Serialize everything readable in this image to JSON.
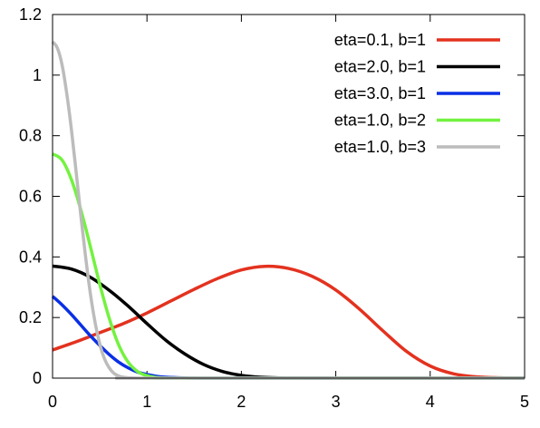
{
  "chart_data": {
    "type": "line",
    "title": "",
    "xlabel": "",
    "ylabel": "",
    "xlim": [
      0,
      5
    ],
    "ylim": [
      0,
      1.2
    ],
    "x_ticks": [
      0,
      1,
      2,
      3,
      4,
      5
    ],
    "x_tick_labels": [
      "0",
      "1",
      "2",
      "3",
      "4",
      "5"
    ],
    "y_ticks": [
      0,
      0.2,
      0.4,
      0.6,
      0.8,
      1.0,
      1.2
    ],
    "y_tick_labels": [
      "0",
      "0.2",
      "0.4",
      "0.6",
      "0.8",
      "1",
      "1.2"
    ],
    "grid": false,
    "legend_position": "top-right",
    "series": [
      {
        "name": "eta=0.1, b=1",
        "color": "#e3321f",
        "x": [
          0,
          0.25,
          0.5,
          0.75,
          1.0,
          1.25,
          1.5,
          1.75,
          2.0,
          2.25,
          2.5,
          2.75,
          3.0,
          3.25,
          3.5,
          3.75,
          4.0,
          4.25,
          4.5,
          4.75,
          5.0
        ],
        "y": [
          0.093,
          0.12,
          0.15,
          0.18,
          0.215,
          0.254,
          0.293,
          0.329,
          0.357,
          0.369,
          0.362,
          0.336,
          0.291,
          0.228,
          0.156,
          0.088,
          0.04,
          0.014,
          0.004,
          0.001,
          0
        ]
      },
      {
        "name": "eta=2.0, b=1",
        "color": "#000000",
        "x": [
          0,
          0.2,
          0.4,
          0.6,
          0.8,
          1.0,
          1.2,
          1.4,
          1.6,
          1.8,
          2.0,
          2.2,
          2.5,
          3.0,
          5.0
        ],
        "y": [
          0.37,
          0.36,
          0.333,
          0.29,
          0.238,
          0.18,
          0.125,
          0.08,
          0.045,
          0.022,
          0.009,
          0.003,
          0.0005,
          0,
          0
        ]
      },
      {
        "name": "eta=3.0, b=1",
        "color": "#0a2fe6",
        "x": [
          0,
          0.1,
          0.2,
          0.3,
          0.4,
          0.5,
          0.6,
          0.7,
          0.8,
          0.9,
          1.0,
          1.1,
          1.2,
          1.4,
          1.6,
          2.0,
          5.0
        ],
        "y": [
          0.27,
          0.242,
          0.21,
          0.175,
          0.14,
          0.108,
          0.078,
          0.053,
          0.034,
          0.02,
          0.012,
          0.006,
          0.003,
          0.0007,
          0.0001,
          0,
          0
        ]
      },
      {
        "name": "eta=1.0, b=2",
        "color": "#73f23f",
        "x": [
          0,
          0.1,
          0.2,
          0.3,
          0.4,
          0.5,
          0.6,
          0.7,
          0.8,
          0.9,
          1.0,
          1.1,
          1.2,
          1.4,
          5.0
        ],
        "y": [
          0.74,
          0.72,
          0.655,
          0.555,
          0.435,
          0.31,
          0.198,
          0.11,
          0.053,
          0.022,
          0.008,
          0.002,
          0.0005,
          0,
          0
        ]
      },
      {
        "name": "eta=1.0, b=3",
        "color": "#bcbcbc",
        "x": [
          0,
          0.05,
          0.1,
          0.15,
          0.2,
          0.25,
          0.3,
          0.35,
          0.4,
          0.45,
          0.5,
          0.55,
          0.6,
          0.65,
          0.7,
          0.75,
          0.8,
          0.9,
          1.0,
          5.0
        ],
        "y": [
          1.11,
          1.09,
          1.035,
          0.94,
          0.82,
          0.68,
          0.535,
          0.4,
          0.28,
          0.185,
          0.113,
          0.064,
          0.034,
          0.016,
          0.007,
          0.003,
          0.001,
          0,
          0,
          0
        ]
      }
    ]
  }
}
